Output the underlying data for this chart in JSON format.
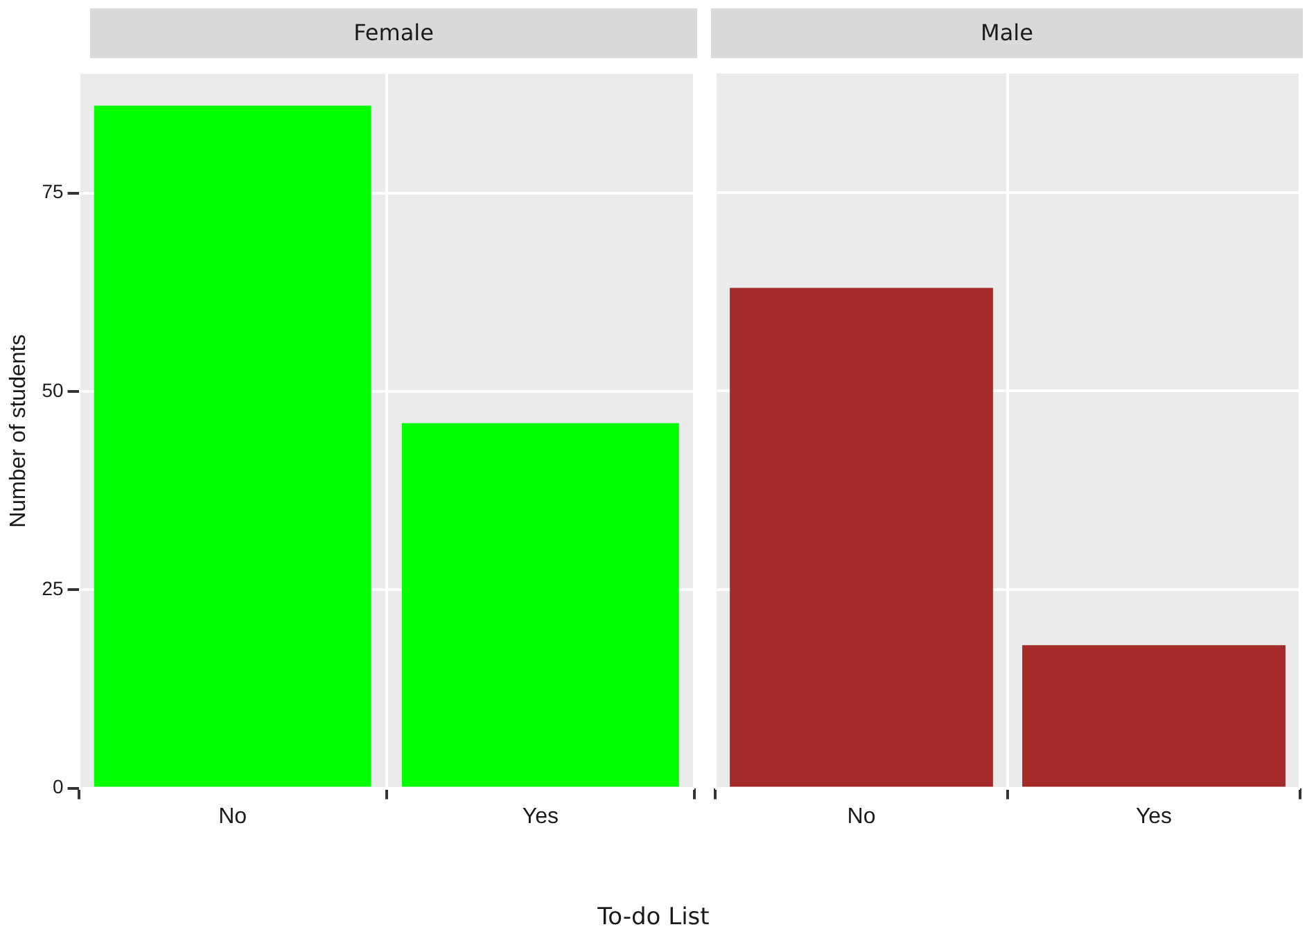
{
  "chart_data": [
    {
      "type": "bar",
      "title": "Female",
      "ylabel": "Number of students",
      "xlabel": "To-do List",
      "categories": [
        "No",
        "Yes"
      ],
      "values": [
        86,
        46
      ],
      "color": "#00ff00",
      "ylim": [
        0,
        90
      ],
      "yticks": [
        0,
        25,
        50,
        75
      ],
      "grid": true
    },
    {
      "type": "bar",
      "title": "Male",
      "categories": [
        "No",
        "Yes"
      ],
      "values": [
        63,
        18
      ],
      "color": "#a52a2a",
      "ylim": [
        0,
        90
      ],
      "yticks": [
        0,
        25,
        50,
        75
      ],
      "grid": true,
      "tick_labels": "x"
    }
  ]
}
